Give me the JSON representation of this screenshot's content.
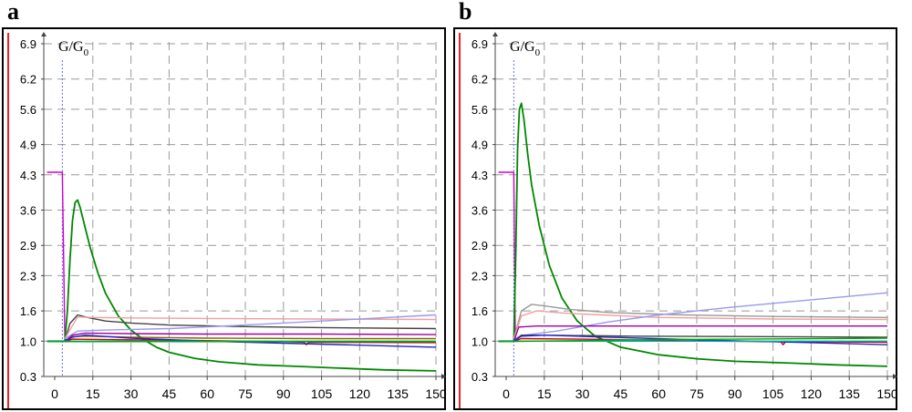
{
  "panels": [
    {
      "letter": "a"
    },
    {
      "letter": "b"
    }
  ],
  "chart_data": [
    {
      "type": "line",
      "panel": "a",
      "ylabel": "G/G",
      "ylabel_subscript": "0",
      "ylim": [
        0.3,
        6.9
      ],
      "xlim": [
        -3,
        150
      ],
      "yticks": [
        "6.9",
        "6.2",
        "5.6",
        "4.9",
        "4.3",
        "3.6",
        "2.9",
        "2.3",
        "1.6",
        "1.0",
        "0.3"
      ],
      "xticks": [
        "0",
        "15",
        "30",
        "45",
        "60",
        "75",
        "90",
        "105",
        "120",
        "135",
        "150"
      ],
      "grid": true,
      "series": [
        {
          "color": "#cc00cc",
          "points": [
            [
              -3,
              4.35
            ],
            [
              3,
              4.35
            ],
            [
              3,
              4.3
            ],
            [
              4,
              1.05
            ],
            [
              5,
              1.0
            ],
            [
              6,
              1.0
            ]
          ]
        },
        {
          "color": "#008800",
          "points": [
            [
              -3,
              1.0
            ],
            [
              4,
              1.0
            ],
            [
              5,
              1.6
            ],
            [
              6,
              2.6
            ],
            [
              7,
              3.4
            ],
            [
              8,
              3.75
            ],
            [
              9,
              3.8
            ],
            [
              10,
              3.65
            ],
            [
              12,
              3.25
            ],
            [
              14,
              2.85
            ],
            [
              17,
              2.35
            ],
            [
              20,
              1.95
            ],
            [
              25,
              1.5
            ],
            [
              30,
              1.22
            ],
            [
              35,
              1.03
            ],
            [
              40,
              0.88
            ],
            [
              45,
              0.78
            ],
            [
              55,
              0.66
            ],
            [
              65,
              0.59
            ],
            [
              80,
              0.53
            ],
            [
              95,
              0.5
            ],
            [
              110,
              0.47
            ],
            [
              130,
              0.43
            ],
            [
              150,
              0.41
            ]
          ]
        },
        {
          "color": "#444444",
          "points": [
            [
              -3,
              1.0
            ],
            [
              4,
              1.0
            ],
            [
              6,
              1.35
            ],
            [
              9,
              1.52
            ],
            [
              13,
              1.47
            ],
            [
              20,
              1.4
            ],
            [
              30,
              1.36
            ],
            [
              45,
              1.32
            ],
            [
              75,
              1.29
            ],
            [
              105,
              1.27
            ],
            [
              150,
              1.25
            ]
          ]
        },
        {
          "color": "#f0a0a0",
          "points": [
            [
              4,
              1.05
            ],
            [
              9,
              1.48
            ],
            [
              15,
              1.47
            ],
            [
              30,
              1.46
            ],
            [
              60,
              1.45
            ],
            [
              105,
              1.44
            ],
            [
              150,
              1.43
            ]
          ]
        },
        {
          "color": "#9999ee",
          "points": [
            [
              4,
              1.05
            ],
            [
              9,
              1.2
            ],
            [
              20,
              1.22
            ],
            [
              45,
              1.25
            ],
            [
              75,
              1.32
            ],
            [
              105,
              1.4
            ],
            [
              150,
              1.52
            ]
          ]
        },
        {
          "color": "#a000a0",
          "points": [
            [
              -3,
              1.0
            ],
            [
              4,
              1.0
            ],
            [
              7,
              1.12
            ],
            [
              12,
              1.16
            ],
            [
              30,
              1.15
            ],
            [
              60,
              1.14
            ],
            [
              105,
              1.14
            ],
            [
              150,
              1.13
            ]
          ]
        },
        {
          "color": "#886600",
          "points": [
            [
              -3,
              1.0
            ],
            [
              4,
              1.0
            ],
            [
              7,
              1.09
            ],
            [
              12,
              1.1
            ],
            [
              30,
              1.08
            ],
            [
              60,
              1.06
            ],
            [
              105,
              1.05
            ],
            [
              150,
              1.05
            ]
          ]
        },
        {
          "color": "#cc0000",
          "points": [
            [
              -3,
              1.0
            ],
            [
              4,
              1.0
            ],
            [
              7,
              1.04
            ],
            [
              20,
              1.03
            ],
            [
              60,
              1.01
            ],
            [
              90,
              0.99
            ],
            [
              98,
              0.98
            ],
            [
              99,
              0.93
            ],
            [
              100,
              0.98
            ],
            [
              150,
              0.97
            ]
          ]
        },
        {
          "color": "#2222cc",
          "points": [
            [
              -3,
              1.0
            ],
            [
              4,
              1.0
            ],
            [
              7,
              1.08
            ],
            [
              12,
              1.12
            ],
            [
              30,
              1.06
            ],
            [
              60,
              1.0
            ],
            [
              90,
              0.96
            ],
            [
              120,
              0.92
            ],
            [
              150,
              0.88
            ]
          ]
        },
        {
          "color": "#00aaaa",
          "points": [
            [
              -3,
              1.0
            ],
            [
              150,
              1.0
            ]
          ]
        },
        {
          "color": "#00aa00",
          "points": [
            [
              -3,
              0.99
            ],
            [
              150,
              0.99
            ]
          ]
        }
      ]
    },
    {
      "type": "line",
      "panel": "b",
      "ylabel": "G/G",
      "ylabel_subscript": "0",
      "ylim": [
        0.3,
        6.9
      ],
      "xlim": [
        -3,
        150
      ],
      "yticks": [
        "6.9",
        "6.2",
        "5.6",
        "4.9",
        "4.3",
        "3.6",
        "2.9",
        "2.3",
        "1.6",
        "1.0",
        "0.3"
      ],
      "xticks": [
        "0",
        "15",
        "30",
        "45",
        "60",
        "75",
        "90",
        "105",
        "120",
        "135",
        "150"
      ],
      "grid": true,
      "series": [
        {
          "color": "#cc00cc",
          "points": [
            [
              -3,
              4.35
            ],
            [
              3,
              4.35
            ],
            [
              3,
              4.3
            ],
            [
              3.6,
              1.05
            ],
            [
              4.5,
              1.0
            ],
            [
              6,
              1.0
            ]
          ]
        },
        {
          "color": "#008800",
          "points": [
            [
              -3,
              1.0
            ],
            [
              3,
              1.0
            ],
            [
              3.8,
              2.8
            ],
            [
              4.5,
              4.8
            ],
            [
              5.2,
              5.6
            ],
            [
              6,
              5.72
            ],
            [
              7,
              5.4
            ],
            [
              8.5,
              4.7
            ],
            [
              10,
              4.1
            ],
            [
              13,
              3.3
            ],
            [
              17,
              2.5
            ],
            [
              22,
              1.85
            ],
            [
              28,
              1.4
            ],
            [
              35,
              1.1
            ],
            [
              45,
              0.88
            ],
            [
              60,
              0.73
            ],
            [
              75,
              0.65
            ],
            [
              90,
              0.6
            ],
            [
              110,
              0.57
            ],
            [
              130,
              0.53
            ],
            [
              150,
              0.5
            ]
          ]
        },
        {
          "color": "#999999",
          "points": [
            [
              3,
              1.05
            ],
            [
              6,
              1.6
            ],
            [
              10,
              1.73
            ],
            [
              15,
              1.7
            ],
            [
              25,
              1.63
            ],
            [
              40,
              1.57
            ],
            [
              70,
              1.52
            ],
            [
              105,
              1.49
            ],
            [
              150,
              1.47
            ]
          ]
        },
        {
          "color": "#f0a0a0",
          "points": [
            [
              3,
              1.05
            ],
            [
              6,
              1.5
            ],
            [
              12,
              1.6
            ],
            [
              25,
              1.55
            ],
            [
              60,
              1.47
            ],
            [
              105,
              1.44
            ],
            [
              150,
              1.43
            ]
          ]
        },
        {
          "color": "#9999ee",
          "points": [
            [
              3,
              1.05
            ],
            [
              7,
              1.12
            ],
            [
              20,
              1.2
            ],
            [
              40,
              1.38
            ],
            [
              60,
              1.52
            ],
            [
              75,
              1.6
            ],
            [
              90,
              1.68
            ],
            [
              105,
              1.75
            ],
            [
              120,
              1.82
            ],
            [
              135,
              1.89
            ],
            [
              150,
              1.96
            ]
          ]
        },
        {
          "color": "#a000a0",
          "points": [
            [
              -3,
              1.0
            ],
            [
              3,
              1.0
            ],
            [
              5,
              1.28
            ],
            [
              12,
              1.3
            ],
            [
              40,
              1.3
            ],
            [
              80,
              1.3
            ],
            [
              150,
              1.3
            ]
          ]
        },
        {
          "color": "#444444",
          "points": [
            [
              -3,
              1.0
            ],
            [
              3,
              1.0
            ],
            [
              6,
              1.12
            ],
            [
              15,
              1.12
            ],
            [
              50,
              1.1
            ],
            [
              100,
              1.09
            ],
            [
              150,
              1.08
            ]
          ]
        },
        {
          "color": "#cc0000",
          "points": [
            [
              -3,
              1.0
            ],
            [
              3,
              1.0
            ],
            [
              6,
              1.05
            ],
            [
              30,
              1.04
            ],
            [
              80,
              1.0
            ],
            [
              108,
              0.99
            ],
            [
              109,
              0.93
            ],
            [
              110,
              0.99
            ],
            [
              150,
              0.98
            ]
          ]
        },
        {
          "color": "#2222cc",
          "points": [
            [
              -3,
              1.0
            ],
            [
              3,
              1.0
            ],
            [
              6,
              1.1
            ],
            [
              15,
              1.12
            ],
            [
              40,
              1.08
            ],
            [
              80,
              1.02
            ],
            [
              120,
              0.97
            ],
            [
              150,
              0.93
            ]
          ]
        },
        {
          "color": "#00aaaa",
          "points": [
            [
              -3,
              1.0
            ],
            [
              150,
              1.0
            ]
          ]
        },
        {
          "color": "#00aa00",
          "points": [
            [
              -3,
              0.99
            ],
            [
              60,
              1.03
            ],
            [
              150,
              1.06
            ]
          ]
        }
      ]
    }
  ]
}
